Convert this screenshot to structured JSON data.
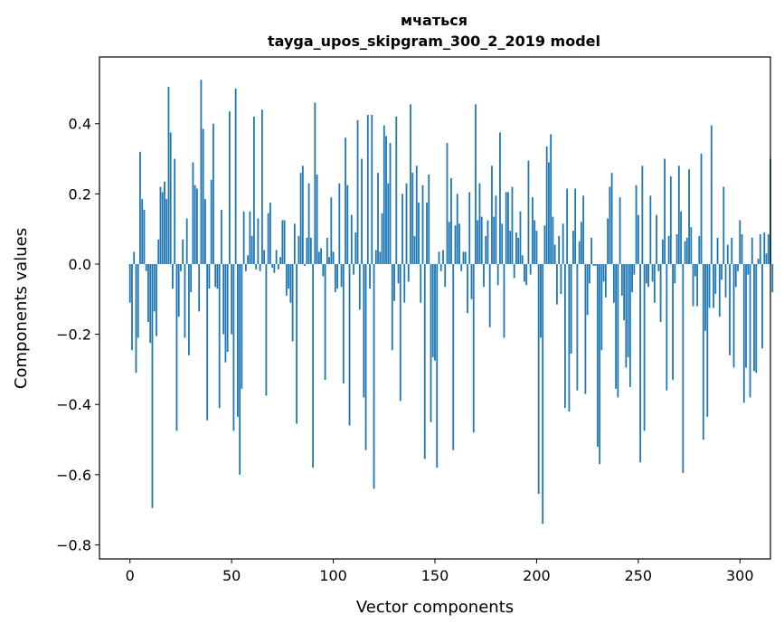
{
  "chart_data": {
    "type": "bar",
    "title_line1": "мчаться",
    "title_line2": "tayga_upos_skipgram_300_2_2019 model",
    "xlabel": "Vector components",
    "ylabel": "Components values",
    "xlim": [
      -15,
      315
    ],
    "ylim": [
      -0.84,
      0.59
    ],
    "xticks": [
      0,
      50,
      100,
      150,
      200,
      250,
      300
    ],
    "xtick_labels": [
      "0",
      "50",
      "100",
      "150",
      "200",
      "250",
      "300"
    ],
    "yticks": [
      -0.8,
      -0.6,
      -0.4,
      -0.2,
      0.0,
      0.2,
      0.4
    ],
    "ytick_labels": [
      "−0.8",
      "−0.6",
      "−0.4",
      "−0.2",
      "0.0",
      "0.2",
      "0.4"
    ],
    "bar_color": "#1f77b4",
    "grid": false,
    "values": [
      -0.11,
      -0.245,
      0.035,
      -0.31,
      -0.21,
      0.32,
      0.185,
      0.155,
      -0.02,
      -0.165,
      -0.225,
      -0.695,
      -0.135,
      -0.205,
      0.07,
      0.22,
      0.205,
      0.235,
      0.185,
      0.505,
      0.375,
      -0.07,
      0.3,
      -0.475,
      -0.15,
      -0.02,
      0.07,
      -0.21,
      0.13,
      -0.26,
      -0.08,
      0.29,
      0.225,
      0.215,
      -0.135,
      0.525,
      0.385,
      0.185,
      -0.445,
      -0.07,
      0.24,
      0.4,
      -0.065,
      -0.07,
      -0.41,
      0.155,
      -0.2,
      -0.28,
      -0.25,
      0.435,
      -0.2,
      -0.475,
      0.5,
      -0.435,
      -0.6,
      -0.355,
      0.15,
      -0.02,
      0.025,
      0.15,
      0.08,
      0.42,
      -0.015,
      0.13,
      -0.02,
      0.44,
      0.04,
      -0.375,
      0.145,
      0.175,
      -0.01,
      -0.025,
      0.04,
      -0.015,
      0.02,
      0.125,
      0.125,
      -0.09,
      -0.07,
      -0.11,
      -0.22,
      0.115,
      -0.455,
      0.08,
      0.26,
      0.28,
      -0.005,
      0.075,
      0.23,
      0.075,
      -0.58,
      0.46,
      0.255,
      0.035,
      0.045,
      -0.035,
      -0.33,
      0.075,
      0.02,
      0.19,
      0.035,
      -0.08,
      -0.07,
      0.23,
      -0.065,
      -0.34,
      0.36,
      0.225,
      -0.46,
      0.14,
      -0.03,
      0.09,
      0.41,
      -0.13,
      0.3,
      -0.38,
      -0.53,
      0.425,
      -0.07,
      0.425,
      -0.64,
      0.04,
      0.26,
      0.035,
      0.145,
      0.395,
      0.365,
      0.23,
      0.345,
      -0.245,
      -0.105,
      0.42,
      -0.055,
      -0.39,
      0.2,
      -0.11,
      0.23,
      -0.05,
      0.455,
      0.26,
      0.08,
      0.28,
      0.175,
      -0.11,
      0.225,
      -0.555,
      0.175,
      0.255,
      -0.45,
      -0.265,
      -0.275,
      -0.58,
      0.035,
      -0.02,
      0.04,
      -0.065,
      0.345,
      0.12,
      0.245,
      -0.53,
      0.11,
      0.2,
      0.115,
      -0.02,
      0.035,
      0.035,
      -0.14,
      0.205,
      -0.1,
      -0.48,
      0.455,
      0.125,
      0.23,
      0.135,
      -0.065,
      0.08,
      0.125,
      -0.18,
      0.28,
      0.135,
      0.195,
      -0.06,
      0.375,
      0.115,
      -0.21,
      0.205,
      0.205,
      0.095,
      0.22,
      -0.04,
      0.09,
      0.075,
      0.15,
      0.025,
      -0.05,
      -0.06,
      0.295,
      -0.03,
      0.19,
      0.125,
      0.095,
      -0.655,
      -0.21,
      -0.74,
      0.11,
      0.335,
      0.29,
      0.37,
      0.135,
      0.055,
      -0.115,
      0.08,
      -0.085,
      0.115,
      -0.41,
      0.215,
      -0.42,
      -0.255,
      0.095,
      0.215,
      -0.36,
      0.065,
      0.12,
      0.195,
      -0.37,
      -0.145,
      -0.055,
      0.075,
      -0.005,
      -0.005,
      -0.52,
      -0.57,
      -0.245,
      -0.05,
      -0.095,
      0.13,
      0.22,
      0.26,
      -0.11,
      -0.355,
      -0.38,
      0.19,
      -0.09,
      -0.16,
      -0.295,
      -0.265,
      -0.35,
      -0.08,
      -0.03,
      0.225,
      0.14,
      -0.565,
      0.28,
      -0.475,
      -0.055,
      -0.065,
      0.195,
      -0.05,
      -0.11,
      0.14,
      -0.02,
      -0.165,
      0.07,
      0.3,
      -0.36,
      0.08,
      0.25,
      -0.33,
      -0.055,
      0.085,
      0.28,
      0.15,
      -0.595,
      0.065,
      0.075,
      0.27,
      0.105,
      -0.12,
      -0.035,
      -0.12,
      0.08,
      0.315,
      -0.5,
      -0.19,
      -0.435,
      -0.125,
      0.395,
      -0.125,
      -0.085,
      0.075,
      -0.15,
      -0.045,
      0.22,
      -0.095,
      0.055,
      -0.26,
      0.075,
      -0.295,
      -0.065,
      -0.02,
      0.125,
      0.085,
      -0.395,
      -0.295,
      -0.03,
      -0.38,
      0.075,
      -0.305,
      -0.31,
      0.015,
      0.085,
      -0.24,
      0.09,
      0.03,
      0.085,
      0.3,
      -0.08
    ]
  }
}
